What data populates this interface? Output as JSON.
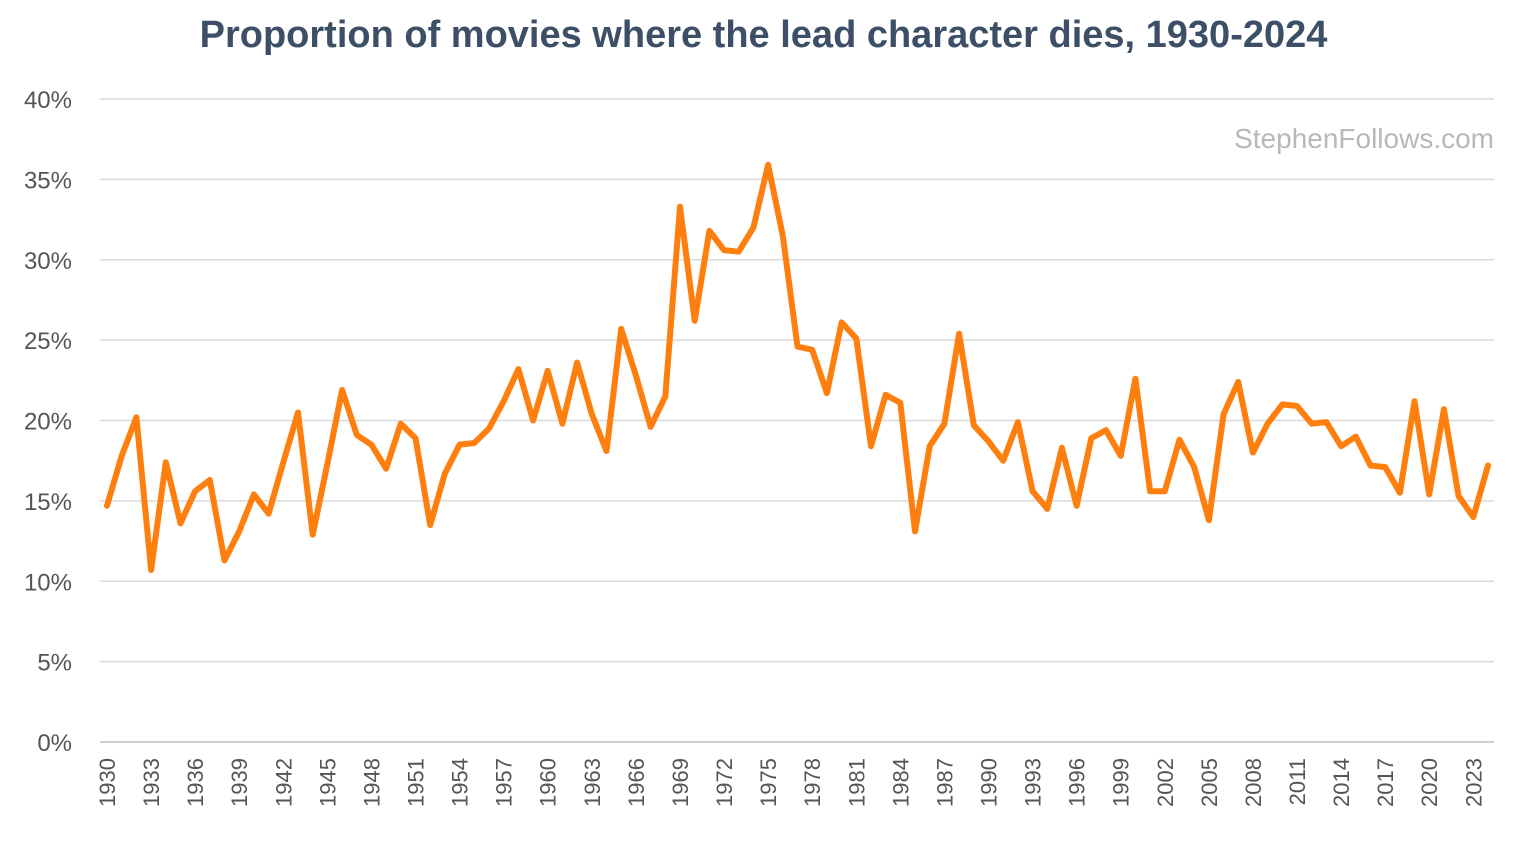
{
  "chart_data": {
    "type": "line",
    "title": "Proportion of movies where the lead character dies, 1930-2024",
    "watermark": "StephenFollows.com",
    "series_color": "#ff7f0e",
    "ylim": [
      0,
      40
    ],
    "y_ticks": [
      "0%",
      "5%",
      "10%",
      "15%",
      "20%",
      "25%",
      "30%",
      "35%",
      "40%"
    ],
    "grid": true,
    "x": [
      1930,
      1931,
      1932,
      1933,
      1934,
      1935,
      1936,
      1937,
      1938,
      1939,
      1940,
      1941,
      1942,
      1943,
      1944,
      1945,
      1946,
      1947,
      1948,
      1949,
      1950,
      1951,
      1952,
      1953,
      1954,
      1955,
      1956,
      1957,
      1958,
      1959,
      1960,
      1961,
      1962,
      1963,
      1964,
      1965,
      1966,
      1967,
      1968,
      1969,
      1970,
      1971,
      1972,
      1973,
      1974,
      1975,
      1976,
      1977,
      1978,
      1979,
      1980,
      1981,
      1982,
      1983,
      1984,
      1985,
      1986,
      1987,
      1988,
      1989,
      1990,
      1991,
      1992,
      1993,
      1994,
      1995,
      1996,
      1997,
      1998,
      1999,
      2000,
      2001,
      2002,
      2003,
      2004,
      2005,
      2006,
      2007,
      2008,
      2009,
      2010,
      2011,
      2012,
      2013,
      2014,
      2015,
      2016,
      2017,
      2018,
      2019,
      2020,
      2021,
      2022,
      2023,
      2024
    ],
    "x_tick_labels": [
      "1930",
      "1933",
      "1936",
      "1939",
      "1942",
      "1945",
      "1948",
      "1951",
      "1954",
      "1957",
      "1960",
      "1963",
      "1966",
      "1969",
      "1972",
      "1975",
      "1978",
      "1981",
      "1984",
      "1987",
      "1990",
      "1993",
      "1996",
      "1999",
      "2002",
      "2005",
      "2008",
      "2011",
      "2014",
      "2017",
      "2020",
      "2023"
    ],
    "values": [
      14.7,
      17.8,
      20.2,
      10.7,
      17.4,
      13.6,
      15.6,
      16.3,
      11.3,
      13.1,
      15.4,
      14.2,
      17.4,
      20.5,
      12.9,
      17.3,
      21.9,
      19.1,
      18.5,
      17.0,
      19.8,
      18.9,
      13.5,
      16.7,
      18.5,
      18.6,
      19.5,
      21.2,
      23.2,
      20.0,
      23.1,
      19.8,
      23.6,
      20.4,
      18.1,
      25.7,
      22.8,
      19.6,
      21.5,
      33.3,
      26.2,
      31.8,
      30.6,
      30.5,
      32.0,
      35.9,
      31.5,
      24.6,
      24.4,
      21.7,
      26.1,
      25.1,
      18.4,
      21.6,
      21.1,
      13.1,
      18.4,
      19.8,
      25.4,
      19.7,
      18.7,
      17.5,
      19.9,
      15.6,
      14.5,
      18.3,
      14.7,
      18.9,
      19.4,
      17.8,
      22.6,
      15.6,
      15.6,
      18.8,
      17.1,
      13.8,
      20.4,
      22.4,
      18.0,
      19.8,
      21.0,
      20.9,
      19.8,
      19.9,
      18.4,
      19.0,
      17.2,
      17.1,
      15.5,
      21.2,
      15.4,
      20.7,
      15.3,
      14.0,
      17.2
    ]
  }
}
